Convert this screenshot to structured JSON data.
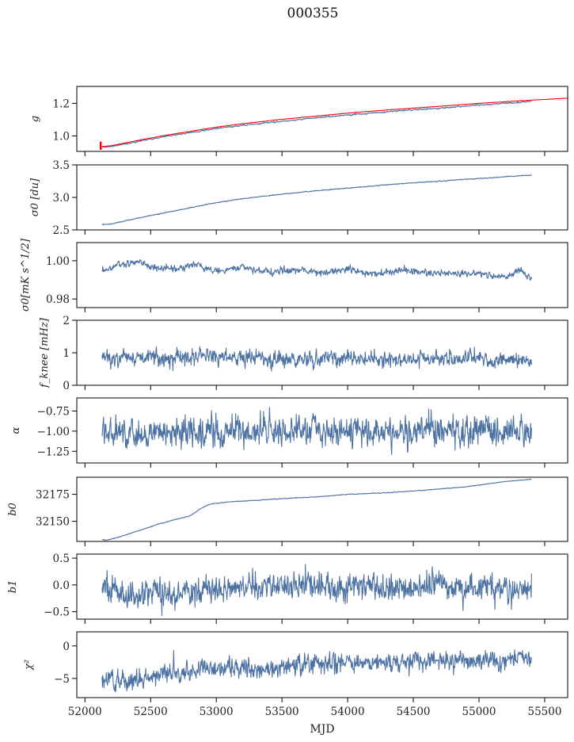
{
  "chart_data": {
    "type": "line",
    "title": "000355",
    "xlabel": "MJD",
    "xlim": [
      51938,
      55675
    ],
    "xticks": [
      52000,
      52500,
      53000,
      53500,
      54000,
      54500,
      55000,
      55500
    ],
    "xtick_labels": [
      "52000",
      "52500",
      "53000",
      "53500",
      "54000",
      "54500",
      "55000",
      "55500"
    ],
    "grid": false,
    "legend": "none",
    "colors": {
      "series": "#4c72a4",
      "fit": "#ff0000",
      "axes": "#000000"
    },
    "panels": [
      {
        "id": "g",
        "ylabel": "g",
        "ylim": [
          0.905,
          1.304
        ],
        "yticks": [
          1.0,
          1.2
        ],
        "ytick_labels": [
          "1.0",
          "1.2"
        ],
        "series": [
          {
            "name": "g (measured)",
            "color": "#4c72a4",
            "noise": 0.002,
            "x": [
              52130,
              52200,
              52400,
              52600,
              52800,
              53000,
              53200,
              53500,
              53800,
              54100,
              54400,
              54700,
              55000,
              55300,
              55400
            ],
            "y": [
              0.93,
              0.935,
              0.965,
              0.995,
              1.02,
              1.045,
              1.065,
              1.09,
              1.115,
              1.135,
              1.155,
              1.17,
              1.19,
              1.205,
              1.212
            ]
          },
          {
            "name": "g (model)",
            "color": "#ff0000",
            "noise": 0.0,
            "width": 2.4,
            "x": [
              52130,
              52200,
              52400,
              52600,
              52800,
              53000,
              53200,
              53500,
              53800,
              54100,
              54400,
              54700,
              55000,
              55300,
              55500,
              55680
            ],
            "y": [
              0.935,
              0.94,
              0.972,
              1.002,
              1.028,
              1.054,
              1.075,
              1.102,
              1.125,
              1.147,
              1.165,
              1.182,
              1.2,
              1.215,
              1.224,
              1.232
            ]
          }
        ],
        "errorbar": {
          "x": 52120,
          "y": 0.94,
          "yerr": 0.025,
          "color": "#ff0000"
        }
      },
      {
        "id": "sigma0_du",
        "ylabel": "σ0 [du]",
        "ylim": [
          2.5,
          3.5
        ],
        "yticks": [
          2.5,
          3.0,
          3.5
        ],
        "ytick_labels": [
          "2.5",
          "3.0",
          "3.5"
        ],
        "series": [
          {
            "name": "sigma0 du",
            "color": "#4c72a4",
            "noise": 0.003,
            "x": [
              52130,
              52200,
              52400,
              52600,
              52800,
              53000,
              53200,
              53500,
              53800,
              54100,
              54400,
              54700,
              55000,
              55300,
              55400
            ],
            "y": [
              2.58,
              2.59,
              2.68,
              2.76,
              2.84,
              2.92,
              2.98,
              3.05,
              3.11,
              3.16,
              3.21,
              3.25,
              3.29,
              3.33,
              3.34
            ]
          }
        ]
      },
      {
        "id": "sigma0_mK",
        "ylabel": "σ0[mK s^1/2]",
        "ylim": [
          0.9755,
          1.0095
        ],
        "yticks": [
          0.98,
          1.0
        ],
        "ytick_labels": [
          "0.98",
          "1.00"
        ],
        "series": [
          {
            "name": "sigma0 mK",
            "color": "#4c72a4",
            "noise": 0.0009,
            "x": [
              52130,
              52250,
              52400,
              52550,
              52700,
              52850,
              53000,
              53200,
              53400,
              53600,
              53800,
              54000,
              54200,
              54400,
              54600,
              54800,
              55000,
              55150,
              55250,
              55300,
              55400
            ],
            "y": [
              0.9945,
              0.9975,
              0.9995,
              0.996,
              0.996,
              0.998,
              0.9945,
              0.9965,
              0.994,
              0.9955,
              0.994,
              0.9955,
              0.993,
              0.995,
              0.9935,
              0.993,
              0.9935,
              0.9915,
              0.9925,
              0.9955,
              0.99
            ]
          }
        ]
      },
      {
        "id": "fknee",
        "ylabel": "f_knee [mHz]",
        "ylim": [
          0,
          2
        ],
        "yticks": [
          0,
          1,
          2
        ],
        "ytick_labels": [
          "0",
          "1",
          "2"
        ],
        "series": [
          {
            "name": "fknee",
            "color": "#4c72a4",
            "noise": 0.11,
            "x": [
              52130,
              52500,
              53000,
              53500,
              54000,
              54500,
              55000,
              55400
            ],
            "y": [
              0.88,
              0.84,
              0.84,
              0.82,
              0.82,
              0.82,
              0.8,
              0.8
            ]
          }
        ]
      },
      {
        "id": "alpha",
        "ylabel": "α",
        "ylim": [
          -1.395,
          -0.588
        ],
        "yticks": [
          -1.25,
          -1.0,
          -0.75
        ],
        "ytick_labels": [
          "−1.25",
          "−1.00",
          "−0.75"
        ],
        "series": [
          {
            "name": "alpha",
            "color": "#4c72a4",
            "noise": 0.09,
            "x": [
              52130,
              52500,
              53000,
              53500,
              54000,
              54500,
              55000,
              55400
            ],
            "y": [
              -1.04,
              -1.03,
              -1.0,
              -0.99,
              -1.0,
              -1.0,
              -1.0,
              -0.99
            ]
          }
        ]
      },
      {
        "id": "b0",
        "ylabel": "b0",
        "ylim": [
          32131.3,
          32190.9
        ],
        "yticks": [
          32150,
          32175
        ],
        "ytick_labels": [
          "32150",
          "32175"
        ],
        "series": [
          {
            "name": "b0",
            "color": "#4c72a4",
            "noise": 0.15,
            "x": [
              52130,
              52170,
              52250,
              52400,
              52550,
              52700,
              52800,
              52870,
              52950,
              53100,
              53300,
              53500,
              53800,
              54000,
              54300,
              54600,
              54900,
              55200,
              55400
            ],
            "y": [
              32133,
              32132.5,
              32135,
              32141,
              32147,
              32152,
              32155,
              32161,
              32166,
              32168,
              32169.5,
              32171,
              32173,
              32175,
              32176.5,
              32179,
              32182,
              32187,
              32189
            ]
          }
        ]
      },
      {
        "id": "b1",
        "ylabel": "b1",
        "ylim": [
          -0.639,
          0.575
        ],
        "yticks": [
          -0.5,
          0.0,
          0.5
        ],
        "ytick_labels": [
          "−0.5",
          "0.0",
          "0.5"
        ],
        "series": [
          {
            "name": "b1",
            "color": "#4c72a4",
            "noise": 0.12,
            "x": [
              52130,
              52300,
              52500,
              52800,
              53000,
              53500,
              54000,
              54500,
              55000,
              55400
            ],
            "y": [
              -0.02,
              -0.2,
              -0.15,
              -0.15,
              -0.05,
              0.0,
              -0.05,
              -0.07,
              -0.05,
              -0.05
            ]
          }
        ]
      },
      {
        "id": "chi2",
        "ylabel": "χ²",
        "ylim": [
          -7.95,
          2.17
        ],
        "yticks": [
          -5,
          0
        ],
        "ytick_labels": [
          "−5",
          "0"
        ],
        "series": [
          {
            "name": "chi2",
            "color": "#4c72a4",
            "noise": 0.7,
            "x": [
              52130,
              52300,
              52500,
              52700,
              53000,
              53300,
              53500,
              53700,
              54000,
              54300,
              54600,
              55000,
              55400
            ],
            "y": [
              -5.0,
              -5.7,
              -4.8,
              -4.0,
              -3.5,
              -3.5,
              -3.2,
              -2.8,
              -2.5,
              -2.5,
              -2.3,
              -2.2,
              -1.8
            ]
          }
        ]
      }
    ]
  }
}
